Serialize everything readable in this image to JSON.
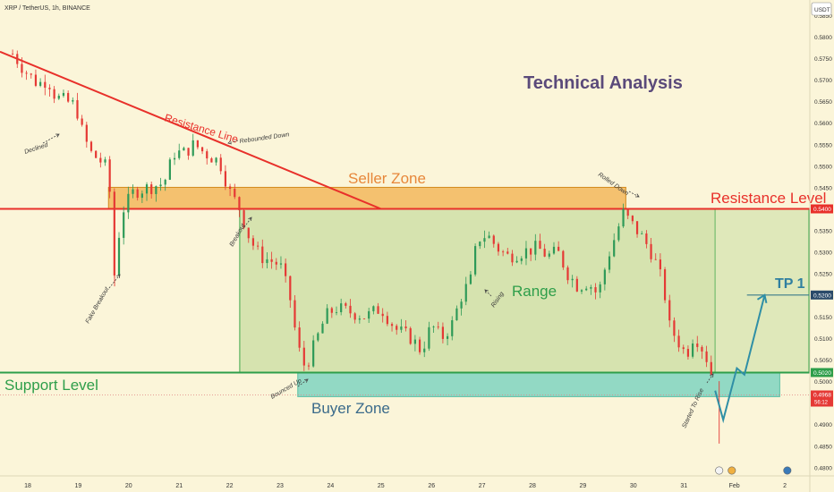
{
  "header": {
    "symbol": "XRP / TetherUS, 1h, BINANCE",
    "currency_badge": "USDT"
  },
  "colors": {
    "background": "#fbf5d9",
    "range_fill": "#c9dca0",
    "range_border": "#3aa64a",
    "resistance_line": "#e8302a",
    "seller_zone": "#f3b454",
    "buyer_zone": "#7fd4c0",
    "support_line": "#2e9e4a",
    "candle_up": "#2e9a58",
    "candle_down": "#e53935",
    "projection": "#2f8fa6",
    "title": "#5a4a7a"
  },
  "annotations": {
    "title": "Technical Analysis",
    "seller_zone": "Seller Zone",
    "buyer_zone": "Buyer Zone",
    "resistance_level": "Resistance Level",
    "support_level": "Support Level",
    "resistance_line": "Resistance Line",
    "range": "Range",
    "tp1": "TP 1",
    "declined": "Declined",
    "rebounded_down": "Rebounded Down",
    "fake_breakout": "Fake Breakout",
    "breakout": "Breakout",
    "bounced_up": "Bounced Up",
    "rising": "Rising",
    "rolled_down": "Rolled Down",
    "started_to_rise": "Started To Rise"
  },
  "chart_data": {
    "type": "candlestick",
    "y_ticks": [
      "0.5850",
      "0.5800",
      "0.5750",
      "0.5700",
      "0.5650",
      "0.5600",
      "0.5550",
      "0.5500",
      "0.5450",
      "0.5400",
      "0.5350",
      "0.5300",
      "0.5250",
      "0.5200",
      "0.5150",
      "0.5100",
      "0.5050",
      "0.5000",
      "0.4950",
      "0.4900",
      "0.4850",
      "0.4800"
    ],
    "x_ticks": [
      "18",
      "19",
      "20",
      "21",
      "22",
      "23",
      "24",
      "25",
      "26",
      "27",
      "28",
      "29",
      "30",
      "31",
      "Feb",
      "2"
    ],
    "ylim": [
      0.478,
      0.5885
    ],
    "levels": {
      "resistance": "0.5400",
      "tp1": "0.5200",
      "support": "0.5020",
      "current": "0.4968",
      "countdown": "56:12"
    },
    "seller_zone": [
      0.54,
      0.545
    ],
    "buyer_zone": [
      0.4964,
      0.502
    ],
    "price_path": [
      [
        17.7,
        0.576
      ],
      [
        17.95,
        0.572
      ],
      [
        18.2,
        0.569
      ],
      [
        18.4,
        0.57
      ],
      [
        18.55,
        0.566
      ],
      [
        18.75,
        0.565
      ],
      [
        18.95,
        0.564
      ],
      [
        19.1,
        0.557
      ],
      [
        19.25,
        0.553
      ],
      [
        19.45,
        0.551
      ],
      [
        19.6,
        0.549
      ],
      [
        19.65,
        0.539
      ],
      [
        19.72,
        0.524
      ],
      [
        19.85,
        0.539
      ],
      [
        20.1,
        0.544
      ],
      [
        20.4,
        0.545
      ],
      [
        20.7,
        0.546
      ],
      [
        20.9,
        0.553
      ],
      [
        21.1,
        0.553
      ],
      [
        21.3,
        0.555
      ],
      [
        21.5,
        0.553
      ],
      [
        21.8,
        0.551
      ],
      [
        22.0,
        0.544
      ],
      [
        22.2,
        0.54
      ],
      [
        22.4,
        0.533
      ],
      [
        22.6,
        0.529
      ],
      [
        22.8,
        0.528
      ],
      [
        23.0,
        0.527
      ],
      [
        23.2,
        0.519
      ],
      [
        23.35,
        0.508
      ],
      [
        23.5,
        0.503
      ],
      [
        23.7,
        0.509
      ],
      [
        23.9,
        0.515
      ],
      [
        24.1,
        0.517
      ],
      [
        24.4,
        0.516
      ],
      [
        24.7,
        0.515
      ],
      [
        25.0,
        0.517
      ],
      [
        25.3,
        0.512
      ],
      [
        25.6,
        0.51
      ],
      [
        25.8,
        0.507
      ],
      [
        26.0,
        0.513
      ],
      [
        26.2,
        0.51
      ],
      [
        26.4,
        0.513
      ],
      [
        26.6,
        0.52
      ],
      [
        26.8,
        0.524
      ],
      [
        26.9,
        0.533
      ],
      [
        27.1,
        0.534
      ],
      [
        27.3,
        0.531
      ],
      [
        27.5,
        0.529
      ],
      [
        27.8,
        0.53
      ],
      [
        28.1,
        0.531
      ],
      [
        28.3,
        0.529
      ],
      [
        28.5,
        0.53
      ],
      [
        28.7,
        0.525
      ],
      [
        28.9,
        0.522
      ],
      [
        29.1,
        0.523
      ],
      [
        29.3,
        0.52
      ],
      [
        29.5,
        0.529
      ],
      [
        29.65,
        0.534
      ],
      [
        29.8,
        0.539
      ],
      [
        30.0,
        0.536
      ],
      [
        30.2,
        0.533
      ],
      [
        30.4,
        0.529
      ],
      [
        30.6,
        0.522
      ],
      [
        30.7,
        0.513
      ],
      [
        30.9,
        0.509
      ],
      [
        31.05,
        0.506
      ],
      [
        31.2,
        0.511
      ],
      [
        31.35,
        0.508
      ],
      [
        31.5,
        0.504
      ],
      [
        31.62,
        0.4978
      ]
    ],
    "projection": [
      [
        31.62,
        0.4978
      ],
      [
        31.78,
        0.491
      ],
      [
        32.05,
        0.503
      ],
      [
        32.2,
        0.5015
      ],
      [
        32.6,
        0.52
      ]
    ]
  }
}
